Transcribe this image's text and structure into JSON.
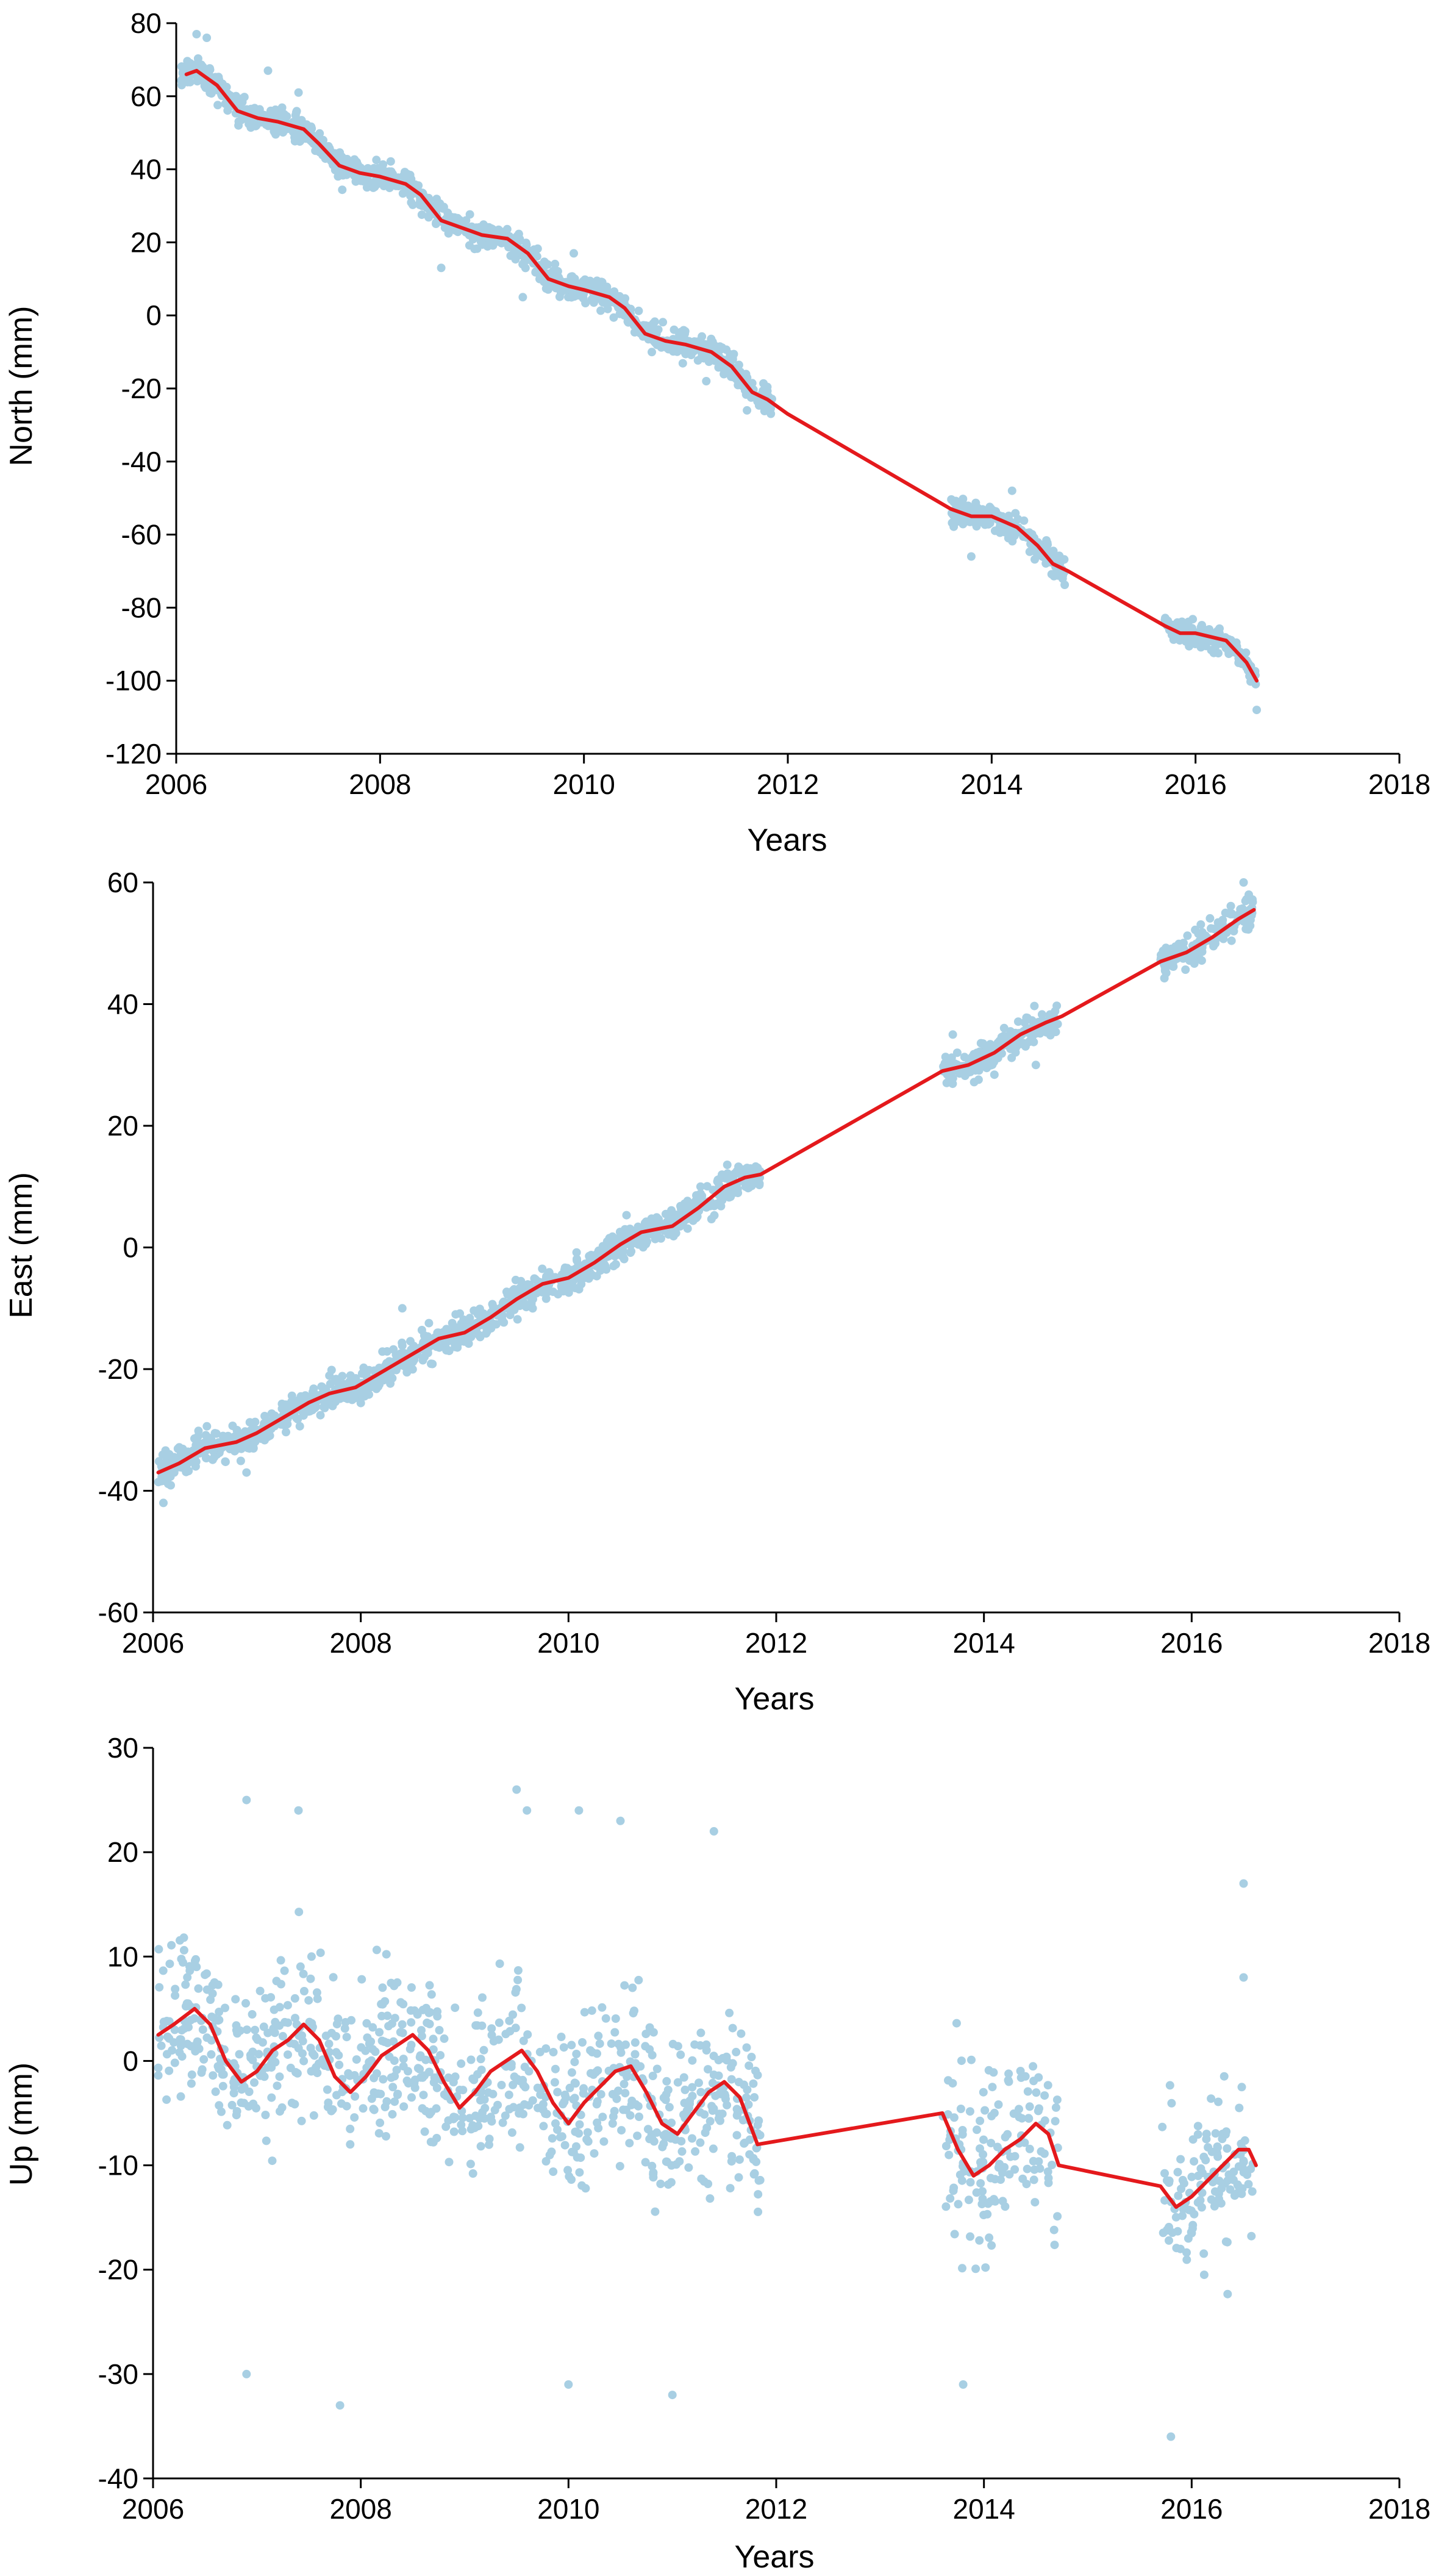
{
  "colors": {
    "scatter": "#a8cfe3",
    "trend": "#e4191c",
    "axis": "#000000"
  },
  "chart_data": [
    {
      "type": "scatter",
      "title": "",
      "xlabel": "Years",
      "ylabel": "North (mm)",
      "xlim": [
        2006,
        2018
      ],
      "ylim": [
        -120,
        80
      ],
      "xticks": [
        "2006",
        "2008",
        "2010",
        "2012",
        "2014",
        "2016",
        "2018"
      ],
      "yticks": [
        "80",
        "60",
        "40",
        "20",
        "0",
        "-20",
        "-40",
        "-60",
        "-80",
        "-100",
        "-120"
      ],
      "series": [
        {
          "kind": "trend",
          "points": [
            [
              2006.1,
              66
            ],
            [
              2006.2,
              67
            ],
            [
              2006.4,
              63
            ],
            [
              2006.6,
              56
            ],
            [
              2006.8,
              54
            ],
            [
              2007.0,
              53
            ],
            [
              2007.25,
              51
            ],
            [
              2007.4,
              47
            ],
            [
              2007.6,
              41
            ],
            [
              2007.8,
              39
            ],
            [
              2008.0,
              38
            ],
            [
              2008.25,
              36
            ],
            [
              2008.4,
              33
            ],
            [
              2008.6,
              26
            ],
            [
              2008.8,
              24
            ],
            [
              2009.0,
              22
            ],
            [
              2009.25,
              21
            ],
            [
              2009.45,
              17
            ],
            [
              2009.65,
              10
            ],
            [
              2009.85,
              8
            ],
            [
              2010.0,
              7
            ],
            [
              2010.25,
              5
            ],
            [
              2010.4,
              2
            ],
            [
              2010.6,
              -5
            ],
            [
              2010.8,
              -7
            ],
            [
              2011.0,
              -8
            ],
            [
              2011.25,
              -10
            ],
            [
              2011.45,
              -14
            ],
            [
              2011.65,
              -21
            ],
            [
              2011.8,
              -23
            ],
            [
              2012.0,
              -27
            ],
            [
              2013.6,
              -53
            ],
            [
              2013.8,
              -55
            ],
            [
              2014.0,
              -55
            ],
            [
              2014.25,
              -58
            ],
            [
              2014.45,
              -63
            ],
            [
              2014.6,
              -68
            ],
            [
              2014.75,
              -70
            ],
            [
              2015.7,
              -85
            ],
            [
              2015.85,
              -87
            ],
            [
              2016.0,
              -87
            ],
            [
              2016.3,
              -89
            ],
            [
              2016.5,
              -95
            ],
            [
              2016.6,
              -100
            ]
          ]
        }
      ],
      "scatter_model": {
        "segments": [
          [
            2006.05,
            2011.85
          ],
          [
            2013.6,
            2014.72
          ],
          [
            2015.7,
            2016.6
          ]
        ],
        "spread": 2.5,
        "count": 1500,
        "outliers": [
          [
            2006.2,
            77
          ],
          [
            2006.3,
            76
          ],
          [
            2006.9,
            67
          ],
          [
            2007.2,
            61
          ],
          [
            2008.6,
            13
          ],
          [
            2009.4,
            5
          ],
          [
            2009.9,
            17
          ],
          [
            2011.2,
            -18
          ],
          [
            2011.6,
            -26
          ],
          [
            2013.8,
            -66
          ],
          [
            2014.2,
            -48
          ],
          [
            2016.6,
            -108
          ]
        ]
      }
    },
    {
      "type": "scatter",
      "title": "",
      "xlabel": "Years",
      "ylabel": "East (mm)",
      "xlim": [
        2006,
        2018
      ],
      "ylim": [
        -60,
        60
      ],
      "xticks": [
        "2006",
        "2008",
        "2010",
        "2012",
        "2014",
        "2016",
        "2018"
      ],
      "yticks": [
        "60",
        "40",
        "20",
        "0",
        "-20",
        "-40",
        "-60"
      ],
      "series": [
        {
          "kind": "trend",
          "points": [
            [
              2006.05,
              -37
            ],
            [
              2006.25,
              -35.5
            ],
            [
              2006.5,
              -33
            ],
            [
              2006.8,
              -32
            ],
            [
              2007.0,
              -30.5
            ],
            [
              2007.25,
              -28
            ],
            [
              2007.5,
              -25.5
            ],
            [
              2007.7,
              -24
            ],
            [
              2007.95,
              -23
            ],
            [
              2008.2,
              -20.5
            ],
            [
              2008.5,
              -17.5
            ],
            [
              2008.75,
              -15
            ],
            [
              2009.0,
              -14
            ],
            [
              2009.25,
              -11.5
            ],
            [
              2009.5,
              -8.5
            ],
            [
              2009.75,
              -6
            ],
            [
              2010.0,
              -5
            ],
            [
              2010.25,
              -2.5
            ],
            [
              2010.5,
              0.5
            ],
            [
              2010.7,
              2.5
            ],
            [
              2011.0,
              3.5
            ],
            [
              2011.25,
              6.5
            ],
            [
              2011.5,
              10
            ],
            [
              2011.7,
              11.5
            ],
            [
              2011.85,
              12
            ],
            [
              2013.6,
              29
            ],
            [
              2013.85,
              30
            ],
            [
              2014.1,
              32
            ],
            [
              2014.35,
              35
            ],
            [
              2014.6,
              37
            ],
            [
              2014.75,
              38
            ],
            [
              2015.7,
              47
            ],
            [
              2015.95,
              48.5
            ],
            [
              2016.2,
              51
            ],
            [
              2016.45,
              54
            ],
            [
              2016.6,
              55.5
            ]
          ]
        }
      ],
      "scatter_model": {
        "segments": [
          [
            2006.05,
            2011.85
          ],
          [
            2013.6,
            2014.72
          ],
          [
            2015.7,
            2016.6
          ]
        ],
        "spread": 1.8,
        "count": 1500,
        "outliers": [
          [
            2006.1,
            -42
          ],
          [
            2006.9,
            -37
          ],
          [
            2008.4,
            -10
          ],
          [
            2013.7,
            35
          ],
          [
            2014.5,
            30
          ],
          [
            2016.5,
            60
          ],
          [
            2016.55,
            58
          ]
        ]
      }
    },
    {
      "type": "scatter",
      "title": "",
      "xlabel": "Years",
      "ylabel": "Up (mm)",
      "xlim": [
        2006,
        2018
      ],
      "ylim": [
        -40,
        30
      ],
      "xticks": [
        "2006",
        "2008",
        "2010",
        "2012",
        "2014",
        "2016",
        "2018"
      ],
      "yticks": [
        "30",
        "20",
        "10",
        "0",
        "-10",
        "-20",
        "-30",
        "-40"
      ],
      "series": [
        {
          "kind": "trend",
          "points": [
            [
              2006.05,
              2.5
            ],
            [
              2006.2,
              3.5
            ],
            [
              2006.4,
              5
            ],
            [
              2006.55,
              3.5
            ],
            [
              2006.7,
              0
            ],
            [
              2006.85,
              -2
            ],
            [
              2007.0,
              -1
            ],
            [
              2007.15,
              1
            ],
            [
              2007.3,
              2
            ],
            [
              2007.45,
              3.5
            ],
            [
              2007.6,
              2
            ],
            [
              2007.75,
              -1.5
            ],
            [
              2007.9,
              -3
            ],
            [
              2008.05,
              -1.5
            ],
            [
              2008.2,
              0.5
            ],
            [
              2008.35,
              1.5
            ],
            [
              2008.5,
              2.5
            ],
            [
              2008.65,
              1
            ],
            [
              2008.8,
              -2
            ],
            [
              2008.95,
              -4.5
            ],
            [
              2009.1,
              -3
            ],
            [
              2009.25,
              -1
            ],
            [
              2009.4,
              0
            ],
            [
              2009.55,
              1
            ],
            [
              2009.7,
              -1
            ],
            [
              2009.85,
              -4
            ],
            [
              2010.0,
              -6
            ],
            [
              2010.15,
              -4
            ],
            [
              2010.3,
              -2.5
            ],
            [
              2010.45,
              -1
            ],
            [
              2010.6,
              -0.5
            ],
            [
              2010.75,
              -3
            ],
            [
              2010.9,
              -6
            ],
            [
              2011.05,
              -7
            ],
            [
              2011.2,
              -5
            ],
            [
              2011.35,
              -3
            ],
            [
              2011.5,
              -2
            ],
            [
              2011.65,
              -3.5
            ],
            [
              2011.82,
              -8
            ],
            [
              2013.6,
              -5
            ],
            [
              2013.75,
              -8.5
            ],
            [
              2013.9,
              -11
            ],
            [
              2014.05,
              -10
            ],
            [
              2014.2,
              -8.5
            ],
            [
              2014.35,
              -7.5
            ],
            [
              2014.5,
              -6
            ],
            [
              2014.62,
              -7
            ],
            [
              2014.72,
              -10
            ],
            [
              2015.7,
              -12
            ],
            [
              2015.85,
              -14
            ],
            [
              2016.0,
              -13
            ],
            [
              2016.15,
              -11.5
            ],
            [
              2016.3,
              -10
            ],
            [
              2016.45,
              -8.5
            ],
            [
              2016.55,
              -8.5
            ],
            [
              2016.62,
              -10
            ]
          ]
        }
      ],
      "scatter_model": {
        "segments": [
          [
            2006.05,
            2011.85
          ],
          [
            2013.6,
            2014.72
          ],
          [
            2015.7,
            2016.6
          ]
        ],
        "spread": 5.5,
        "count": 1100,
        "outliers": [
          [
            2006.9,
            25
          ],
          [
            2007.4,
            24
          ],
          [
            2009.5,
            26
          ],
          [
            2009.6,
            24
          ],
          [
            2010.1,
            24
          ],
          [
            2010.5,
            23
          ],
          [
            2011.4,
            22
          ],
          [
            2006.9,
            -30
          ],
          [
            2007.8,
            -33
          ],
          [
            2010.0,
            -31
          ],
          [
            2011.0,
            -32
          ],
          [
            2013.8,
            -31
          ],
          [
            2015.8,
            -36
          ],
          [
            2016.5,
            17
          ],
          [
            2016.5,
            8
          ]
        ]
      }
    }
  ]
}
